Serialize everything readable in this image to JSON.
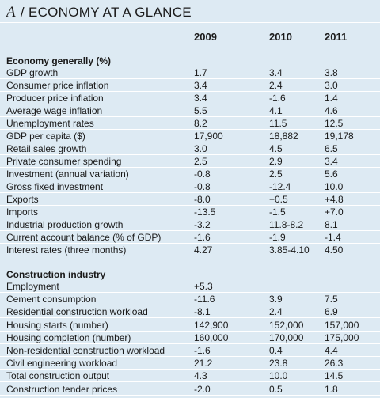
{
  "header": {
    "letter": "A",
    "separator": "/",
    "title": "ECONOMY AT A GLANCE"
  },
  "years": [
    "2009",
    "2010",
    "2011"
  ],
  "sections": [
    {
      "title": "Economy generally (%)",
      "rows": [
        [
          "GDP growth",
          "1.7",
          "3.4",
          "3.8"
        ],
        [
          "Consumer price inflation",
          "3.4",
          "2.4",
          "3.0"
        ],
        [
          "Producer price inflation",
          "3.4",
          "-1.6",
          "1.4"
        ],
        [
          "Average wage inflation",
          "5.5",
          "4.1",
          "4.6"
        ],
        [
          "Unemployment rates",
          "8.2",
          "11.5",
          "12.5"
        ],
        [
          "GDP per capita ($)",
          "17,900",
          "18,882",
          "19,178"
        ],
        [
          "Retail sales growth",
          "3.0",
          "4.5",
          "6.5"
        ],
        [
          "Private consumer spending",
          "2.5",
          "2.9",
          "3.4"
        ],
        [
          "Investment (annual variation)",
          "-0.8",
          "2.5",
          "5.6"
        ],
        [
          "Gross fixed investment",
          "-0.8",
          "-12.4",
          "10.0"
        ],
        [
          "Exports",
          "-8.0",
          "+0.5",
          "+4.8"
        ],
        [
          "Imports",
          "-13.5",
          "-1.5",
          "+7.0"
        ],
        [
          "Industrial production growth",
          "-3.2",
          "11.8-8.2",
          "8.1"
        ],
        [
          "Current account balance (% of GDP)",
          "-1.6",
          "-1.9",
          "-1.4"
        ],
        [
          "Interest rates (three months)",
          "4.27",
          "3.85-4.10",
          "4.50"
        ]
      ]
    },
    {
      "title": "Construction industry",
      "rows": [
        [
          "Employment",
          "+5.3",
          "",
          ""
        ],
        [
          "Cement consumption",
          "-11.6",
          "3.9",
          "7.5"
        ],
        [
          "Residential construction workload",
          "-8.1",
          "2.4",
          "6.9"
        ],
        [
          "Housing starts (number)",
          "142,900",
          "152,000",
          "157,000"
        ],
        [
          "Housing completion (number)",
          "160,000",
          "170,000",
          "175,000"
        ],
        [
          "Non-residential construction workload",
          "-1.6",
          "0.4",
          "4.4"
        ],
        [
          "Civil engineering workload",
          "21.2",
          "23.8",
          "26.3"
        ],
        [
          "Total construction output",
          "4.3",
          "10.0",
          "14.5"
        ],
        [
          "Construction tender prices",
          "-2.0",
          "0.5",
          "1.8"
        ]
      ]
    }
  ]
}
